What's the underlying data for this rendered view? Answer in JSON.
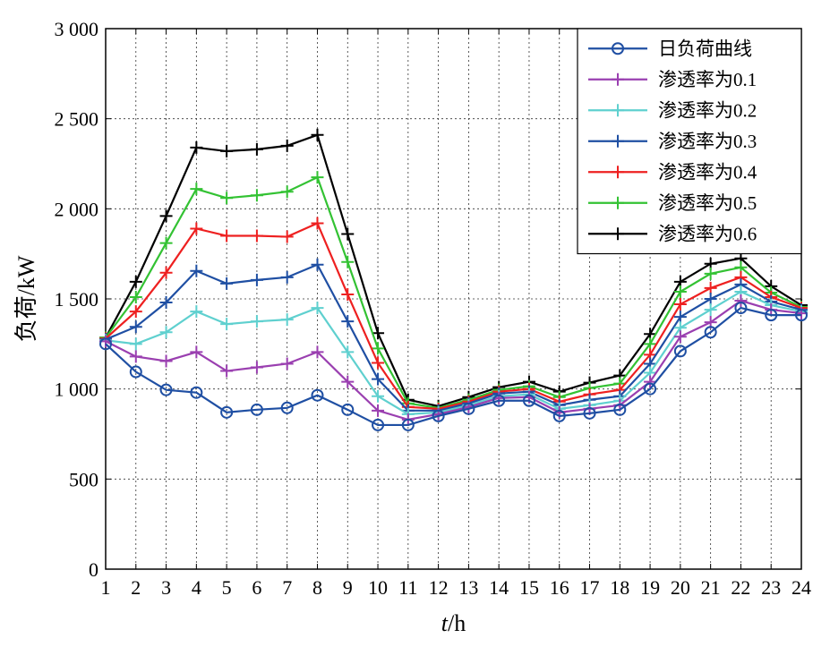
{
  "chart_data": {
    "type": "line",
    "xlabel_italic": "t",
    "xlabel_rest": "/h",
    "ylabel": "负荷/kW",
    "xlim": [
      1,
      24
    ],
    "ylim": [
      0,
      3000
    ],
    "grid": true,
    "legend_position": "top-right",
    "x": [
      1,
      2,
      3,
      4,
      5,
      6,
      7,
      8,
      9,
      10,
      11,
      12,
      13,
      14,
      15,
      16,
      17,
      18,
      19,
      20,
      21,
      22,
      23,
      24
    ],
    "x_tick_labels": [
      "1",
      "2",
      "3",
      "4",
      "5",
      "6",
      "7",
      "8",
      "9",
      "10",
      "11",
      "12",
      "13",
      "14",
      "15",
      "16",
      "17",
      "18",
      "19",
      "20",
      "21",
      "22",
      "23",
      "24"
    ],
    "y_ticks": [
      0,
      500,
      1000,
      1500,
      2000,
      2500,
      3000
    ],
    "y_tick_labels": [
      "0",
      "500",
      "1 000",
      "1 500",
      "2 000",
      "2 500",
      "3 000"
    ],
    "series": [
      {
        "name": "日负荷曲线",
        "color": "#1f4fa3",
        "marker": "circle",
        "values": [
          1250,
          1095,
          995,
          980,
          870,
          885,
          895,
          965,
          885,
          800,
          800,
          850,
          890,
          935,
          935,
          850,
          865,
          885,
          1000,
          1210,
          1315,
          1450,
          1410,
          1410
        ]
      },
      {
        "name": "渗透率为0.1",
        "color": "#9a3fb0",
        "marker": "plus",
        "values": [
          1265,
          1180,
          1155,
          1205,
          1100,
          1120,
          1140,
          1205,
          1040,
          880,
          830,
          860,
          900,
          950,
          955,
          870,
          890,
          910,
          1040,
          1290,
          1370,
          1490,
          1440,
          1420
        ]
      },
      {
        "name": "渗透率为0.2",
        "color": "#5fd0cf",
        "marker": "plus",
        "values": [
          1270,
          1250,
          1315,
          1430,
          1360,
          1375,
          1385,
          1450,
          1205,
          960,
          860,
          870,
          910,
          960,
          970,
          890,
          910,
          935,
          1090,
          1340,
          1440,
          1540,
          1465,
          1430
        ]
      },
      {
        "name": "渗透率为0.3",
        "color": "#1f4fa3",
        "marker": "plus",
        "values": [
          1275,
          1345,
          1480,
          1655,
          1585,
          1605,
          1620,
          1690,
          1375,
          1055,
          880,
          880,
          920,
          975,
          985,
          910,
          940,
          960,
          1140,
          1400,
          1500,
          1580,
          1485,
          1440
        ]
      },
      {
        "name": "渗透率为0.4",
        "color": "#ee2020",
        "marker": "plus",
        "values": [
          1280,
          1430,
          1645,
          1890,
          1850,
          1850,
          1845,
          1920,
          1525,
          1145,
          900,
          890,
          930,
          985,
          1000,
          930,
          970,
          995,
          1190,
          1470,
          1560,
          1620,
          1510,
          1450
        ]
      },
      {
        "name": "渗透率为0.5",
        "color": "#33c233",
        "marker": "plus",
        "values": [
          1285,
          1510,
          1810,
          2110,
          2060,
          2075,
          2095,
          2175,
          1705,
          1225,
          920,
          895,
          940,
          995,
          1015,
          955,
          1005,
          1030,
          1250,
          1540,
          1640,
          1675,
          1535,
          1455
        ]
      },
      {
        "name": "渗透率为0.6",
        "color": "#000000",
        "marker": "plus",
        "values": [
          1285,
          1595,
          1960,
          2340,
          2320,
          2330,
          2350,
          2410,
          1860,
          1310,
          940,
          905,
          955,
          1010,
          1040,
          985,
          1035,
          1075,
          1305,
          1595,
          1695,
          1725,
          1570,
          1465
        ]
      }
    ]
  }
}
